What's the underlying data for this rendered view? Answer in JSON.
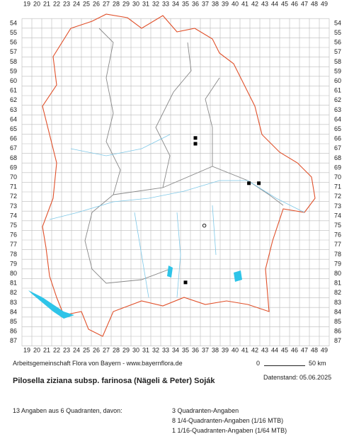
{
  "map": {
    "x_labels": [
      19,
      20,
      21,
      22,
      23,
      24,
      25,
      26,
      27,
      28,
      29,
      30,
      31,
      32,
      33,
      34,
      35,
      36,
      37,
      38,
      39,
      40,
      41,
      42,
      43,
      44,
      45,
      46,
      47,
      48,
      49
    ],
    "y_labels": [
      54,
      55,
      56,
      57,
      58,
      59,
      60,
      61,
      62,
      63,
      64,
      65,
      66,
      67,
      68,
      69,
      70,
      71,
      72,
      73,
      74,
      75,
      76,
      77,
      78,
      79,
      80,
      81,
      82,
      83,
      84,
      85,
      86,
      87
    ],
    "markers": [
      {
        "x": 36,
        "y": 65.9,
        "kind": "filled"
      },
      {
        "x": 36,
        "y": 66.5,
        "kind": "filled"
      },
      {
        "x": 41.4,
        "y": 70.6,
        "kind": "filled"
      },
      {
        "x": 42.4,
        "y": 70.6,
        "kind": "filled"
      },
      {
        "x": 36.9,
        "y": 75,
        "kind": "open"
      },
      {
        "x": 35,
        "y": 80.9,
        "kind": "filled"
      }
    ]
  },
  "scale": {
    "start": "0",
    "end": "50 km"
  },
  "credit": "Arbeitsgemeinschaft Flora von Bayern - www.bayernflora.de",
  "date": "Datenstand: 05.06.2025",
  "title": "Pilosella ziziana subsp. farinosa (Nägeli & Peter) Soják",
  "summary": "13 Angaben aus 6 Quadranten, davon:",
  "details": [
    "3 Quadranten-Angaben",
    "8 1/4-Quadranten-Angaben (1/16 MTB)",
    "1 1/16-Quadranten-Angaben (1/64 MTB)"
  ]
}
